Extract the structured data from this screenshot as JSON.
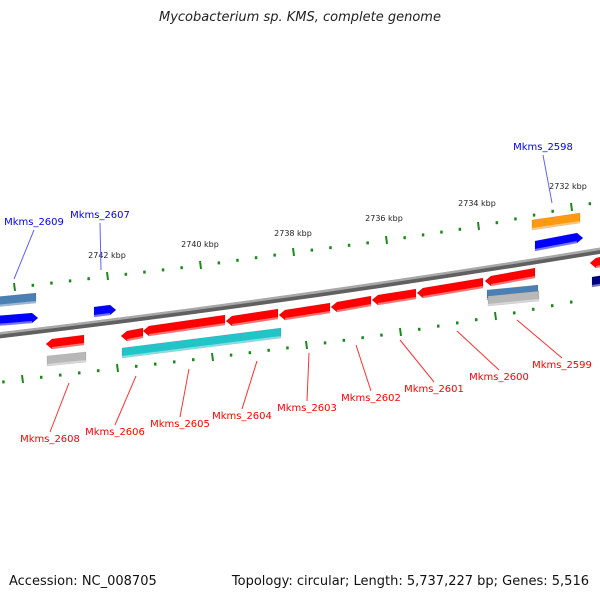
{
  "title": "Mycobacterium sp. KMS, complete genome",
  "accession": "Accession: NC_008705",
  "summary": "Topology: circular; Length: 5,737,227 bp; Genes: 5,516",
  "colors": {
    "forward_label": "#0000ff",
    "reverse_label": "#ff0000",
    "tick": "#1a8a1a",
    "backbone": "#808080",
    "cds": "#ff0000",
    "forward_cds": "#0000ff",
    "cyan": "#22c4c8",
    "orange": "#ff9a10",
    "steel": "#4a80b4",
    "gray": "#b8b8b8",
    "navy": "#000080"
  },
  "kbp_ticks": [
    "2742 kbp",
    "2740 kbp",
    "2738 kbp",
    "2736 kbp",
    "2734 kbp",
    "2732 kbp"
  ],
  "gene_labels": {
    "forward": [
      "Mkms_2609",
      "Mkms_2607",
      "Mkms_2598"
    ],
    "reverse": [
      "Mkms_2608",
      "Mkms_2606",
      "Mkms_2605",
      "Mkms_2604",
      "Mkms_2603",
      "Mkms_2602",
      "Mkms_2601",
      "Mkms_2600",
      "Mkms_2599"
    ]
  }
}
